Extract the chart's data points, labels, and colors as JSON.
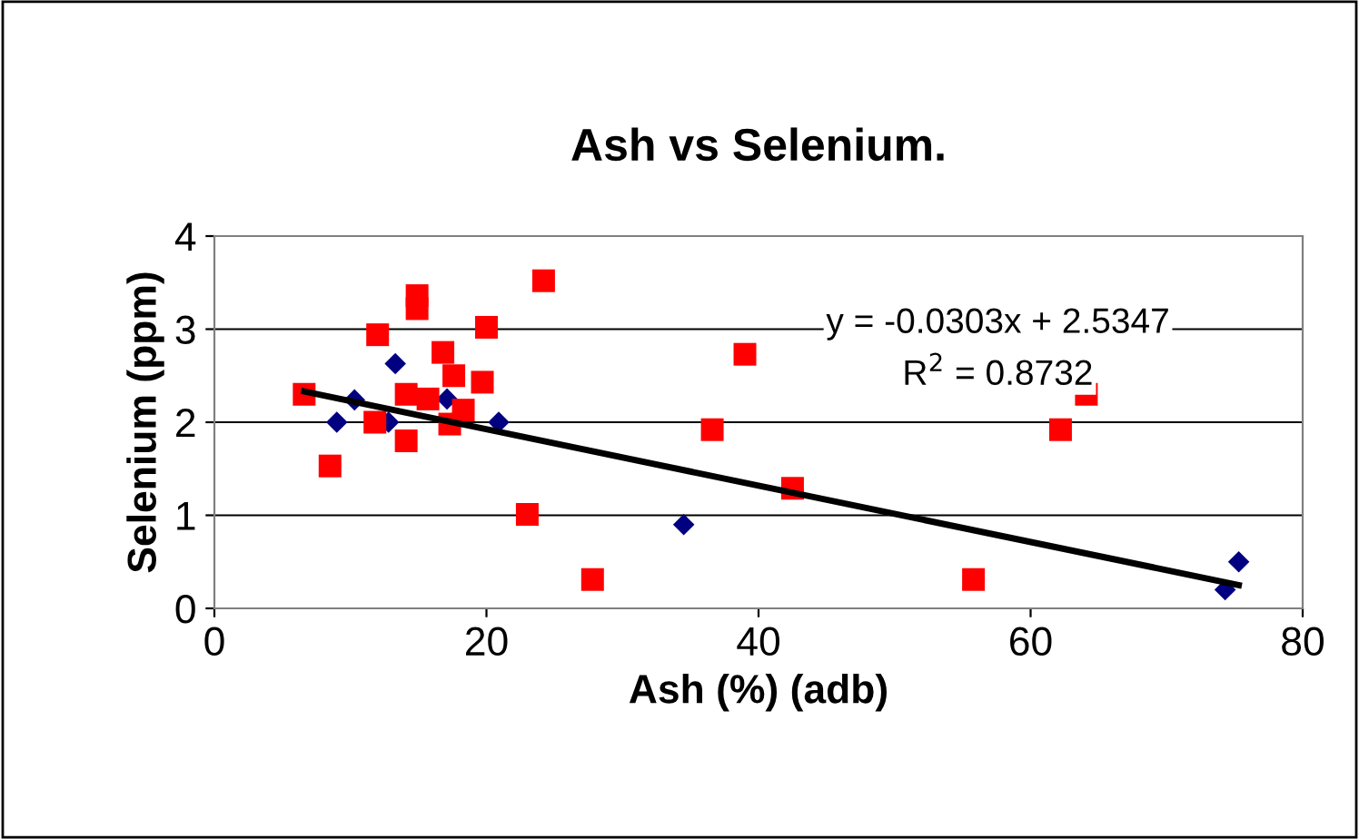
{
  "chart_data": {
    "type": "scatter",
    "title": "Ash vs Selenium.",
    "xlabel": "Ash (%) (adb)",
    "ylabel": "Selenium (ppm)",
    "xlim": [
      0,
      80
    ],
    "xticks": [
      0,
      20,
      40,
      60,
      80
    ],
    "ylim": [
      0,
      4
    ],
    "yticks": [
      0,
      1,
      2,
      3,
      4
    ],
    "grid": "y",
    "legend": false,
    "series": [
      {
        "marker": "diamond",
        "color": "#000080",
        "x": [
          9.0,
          10.3,
          13.3,
          12.8,
          17.1,
          20.9,
          34.5,
          74.3,
          75.3
        ],
        "values": [
          2.0,
          2.24,
          2.63,
          2.0,
          2.25,
          2.0,
          0.9,
          0.2,
          0.5
        ]
      },
      {
        "marker": "square",
        "color": "#ff0000",
        "x": [
          6.6,
          8.5,
          12.0,
          11.8,
          14.9,
          14.9,
          14.1,
          14.1,
          15.7,
          16.8,
          17.6,
          17.3,
          18.3,
          19.7,
          20.0,
          24.2,
          23.0,
          27.8,
          36.6,
          39.0,
          42.5,
          55.8,
          62.2,
          64.1
        ],
        "values": [
          2.3,
          1.53,
          2.94,
          2.0,
          3.36,
          3.22,
          1.8,
          2.3,
          2.25,
          2.75,
          2.5,
          1.98,
          2.13,
          2.43,
          3.02,
          3.52,
          1.01,
          0.31,
          1.92,
          2.73,
          1.29,
          0.31,
          1.92,
          2.3
        ]
      },
      {
        "type": "line",
        "marker": "none",
        "color": "#000000",
        "x": [
          6.6,
          75.3
        ],
        "values": [
          2.33,
          0.25
        ]
      }
    ],
    "annotations": [
      "y = -0.0303x + 2.5347",
      "R$^{2}$ = 0.8732"
    ]
  }
}
